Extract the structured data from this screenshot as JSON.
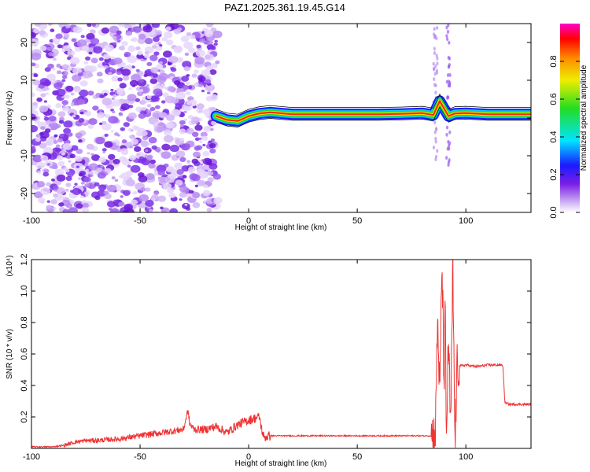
{
  "title": "PAZ1.2025.361.19.45.G14",
  "chart_data": [
    {
      "type": "heatmap",
      "xlabel": "Height of straight line (km)",
      "ylabel": "Frequency (Hz)",
      "xlim": [
        -100,
        130
      ],
      "ylim": [
        -25,
        25
      ],
      "xticks": [
        -100,
        -50,
        0,
        50,
        100
      ],
      "yticks": [
        -20,
        -10,
        0,
        10,
        20
      ],
      "colorbar": {
        "label": "Normalized spectral amplitude",
        "range": [
          0,
          1
        ],
        "ticks": [
          "0.0",
          "0.2",
          "0.4",
          "0.6",
          "0.8"
        ]
      },
      "ridge": {
        "name": "",
        "x": [
          -15,
          -10,
          -5,
          0,
          5,
          10,
          20,
          30,
          40,
          50,
          60,
          70,
          80,
          85,
          88,
          92,
          95,
          100,
          110,
          120,
          130
        ],
        "y": [
          0.5,
          -0.5,
          -0.8,
          0.5,
          1.2,
          1.5,
          1.0,
          1.0,
          1.0,
          1.0,
          1.0,
          1.1,
          1.3,
          0.8,
          4.5,
          0.5,
          1.2,
          1.3,
          1.0,
          1.0,
          1.0
        ]
      },
      "noise_region_x": [
        -100,
        -17
      ]
    },
    {
      "type": "line",
      "xlabel": "Height of straight line (km)",
      "ylabel": "SNR (10 * v/v)",
      "y_multiplier": "(x10⁴)",
      "xlim": [
        -100,
        130
      ],
      "ylim": [
        0,
        1.2
      ],
      "xticks": [
        -100,
        -50,
        0,
        50,
        100
      ],
      "yticks": [
        0.2,
        0.4,
        0.6,
        0.8,
        1.0,
        1.2
      ],
      "color": "#ee3333",
      "series": [
        {
          "x": [
            -100,
            -90,
            -85,
            -80,
            -75,
            -70,
            -60,
            -55,
            -50,
            -45,
            -40,
            -35,
            -30,
            -28,
            -27,
            -25,
            -20,
            -15,
            -10,
            -5,
            0,
            5,
            6,
            7,
            10,
            20,
            30,
            40,
            50,
            60,
            70,
            80,
            84,
            86,
            87,
            88,
            89,
            90,
            90.5,
            91,
            92,
            93,
            94,
            95,
            96,
            100,
            105,
            110,
            117,
            118,
            120,
            125,
            130
          ],
          "y": [
            0.01,
            0.01,
            0.02,
            0.04,
            0.05,
            0.05,
            0.06,
            0.07,
            0.08,
            0.09,
            0.1,
            0.11,
            0.12,
            0.24,
            0.15,
            0.12,
            0.12,
            0.14,
            0.1,
            0.15,
            0.18,
            0.2,
            0.12,
            0.07,
            0.08,
            0.08,
            0.08,
            0.08,
            0.08,
            0.08,
            0.08,
            0.08,
            0.08,
            0.1,
            0.85,
            0.3,
            1.2,
            0.4,
            0.9,
            0.03,
            0.7,
            0.1,
            1.15,
            0.02,
            0.52,
            0.53,
            0.52,
            0.53,
            0.53,
            0.29,
            0.28,
            0.28,
            0.28
          ]
        }
      ]
    }
  ]
}
